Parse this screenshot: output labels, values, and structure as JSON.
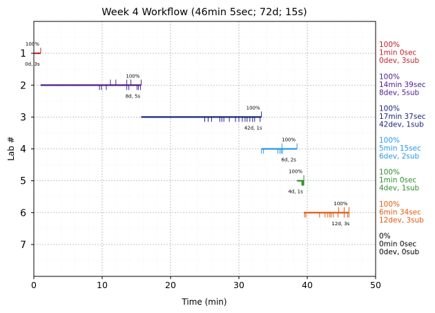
{
  "chart_data": {
    "type": "timeline",
    "title": "Week 4 Workflow (46min 5sec; 72d; 15s)",
    "xlabel": "Time (min)",
    "ylabel": "Lab #",
    "xlim": [
      0,
      50
    ],
    "ylim": [
      8,
      0
    ],
    "xticks": [
      "0",
      "10",
      "20",
      "30",
      "40",
      "50"
    ],
    "yticks": [
      "1",
      "2",
      "3",
      "4",
      "5",
      "6",
      "7"
    ],
    "grid": true,
    "labs": [
      {
        "lab": 1,
        "color": "#c0202a",
        "start": 0.0,
        "end": 1.0,
        "dev_ticks": [],
        "sub_ticks": [
          1.0
        ],
        "pct": "100%",
        "stat": "0d, 3s",
        "side": [
          "100%",
          "1min 0sec",
          "0dev, 3sub"
        ]
      },
      {
        "lab": 2,
        "color": "#4b1c8c",
        "start": 1.0,
        "end": 15.7,
        "dev_ticks": [
          9.6,
          9.9,
          10.6,
          13.6,
          13.9,
          15.1,
          15.3,
          15.6
        ],
        "sub_ticks": [
          11.2,
          12.0,
          13.6,
          14.2,
          15.7
        ],
        "pct": "100%",
        "stat": "8d, 5s",
        "side": [
          "100%",
          "14min 39sec",
          "8dev, 5sub"
        ]
      },
      {
        "lab": 3,
        "color": "#1a237e",
        "start": 15.7,
        "end": 33.3,
        "dev_ticks": [
          25.0,
          25.5,
          26.0,
          27.2,
          27.5,
          27.8,
          28.6,
          29.5,
          30.0,
          30.5,
          30.9,
          31.2,
          31.6,
          32.0,
          32.3,
          33.1
        ],
        "sub_ticks": [
          33.3
        ],
        "pct": "100%",
        "stat": "42d, 1s",
        "side": [
          "100%",
          "17min 37sec",
          "42dev, 1sub"
        ]
      },
      {
        "lab": 4,
        "color": "#2a96e6",
        "start": 33.3,
        "end": 38.5,
        "dev_ticks": [
          33.3,
          33.6,
          35.7,
          36.0,
          36.2,
          36.4
        ],
        "sub_ticks": [
          36.3,
          38.5
        ],
        "pct": "100%",
        "stat": "6d, 2s",
        "side": [
          "100%",
          "5min 15sec",
          "6dev, 2sub"
        ]
      },
      {
        "lab": 5,
        "color": "#2e8b2e",
        "start": 38.5,
        "end": 39.5,
        "dev_ticks": [
          39.2,
          39.3,
          39.4,
          39.5
        ],
        "sub_ticks": [
          39.5
        ],
        "pct": "100%",
        "stat": "4d, 1s",
        "side": [
          "100%",
          "1min 0sec",
          "4dev, 1sub"
        ]
      },
      {
        "lab": 6,
        "color": "#e05a12",
        "start": 39.5,
        "end": 46.1,
        "dev_ticks": [
          39.6,
          39.8,
          41.8,
          42.6,
          43.0,
          43.3,
          43.5,
          43.8,
          44.5,
          45.4,
          45.9,
          46.1
        ],
        "sub_ticks": [
          44.6,
          45.4,
          46.1
        ],
        "pct": "100%",
        "stat": "12d, 3s",
        "side": [
          "100%",
          "6min 34sec",
          "12dev, 3sub"
        ]
      },
      {
        "lab": 7,
        "color": "#000000",
        "start": null,
        "end": null,
        "dev_ticks": [],
        "sub_ticks": [],
        "pct": "",
        "stat": "",
        "side": [
          "0%",
          "0min 0sec",
          "0dev, 0sub"
        ]
      }
    ]
  }
}
